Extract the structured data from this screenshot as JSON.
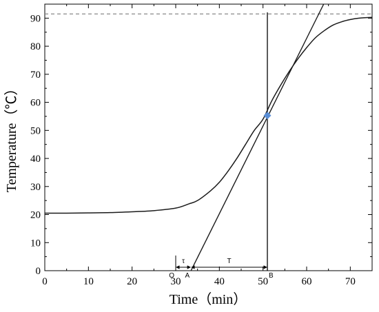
{
  "chart_data": {
    "type": "line",
    "xlabel": "Time（min）",
    "ylabel": "Temperature（℃）",
    "xlim": [
      0,
      75
    ],
    "ylim": [
      0,
      95
    ],
    "x_ticks": [
      "0",
      "10",
      "20",
      "30",
      "40",
      "50",
      "60",
      "70"
    ],
    "y_ticks": [
      "0",
      "10",
      "20",
      "30",
      "40",
      "50",
      "60",
      "70",
      "80",
      "90"
    ],
    "x_tick_values": [
      0,
      10,
      20,
      30,
      40,
      50,
      60,
      70
    ],
    "y_tick_values": [
      0,
      10,
      20,
      30,
      40,
      50,
      60,
      70,
      80,
      90
    ],
    "grid": false,
    "series": [
      {
        "kind": "curve",
        "x": [
          0,
          5,
          10,
          15,
          20,
          25,
          30,
          33,
          35,
          38,
          40,
          42,
          44,
          46,
          48,
          50,
          52,
          54,
          56,
          58,
          60,
          62,
          64,
          66,
          68,
          70,
          72,
          75
        ],
        "y": [
          20.5,
          20.5,
          20.6,
          20.7,
          21.0,
          21.4,
          22.3,
          23.8,
          25.0,
          28.5,
          31.5,
          35.5,
          40.0,
          45.0,
          50.0,
          54.0,
          60.5,
          66.0,
          71.0,
          75.5,
          79.5,
          83.0,
          85.5,
          87.5,
          88.7,
          89.5,
          90.0,
          90.3
        ]
      },
      {
        "kind": "tangent",
        "x": [
          33.5,
          63.9
        ],
        "y": [
          0,
          95
        ]
      }
    ],
    "reference_line": {
      "y": 91.5,
      "style": "dashed"
    },
    "vertical_line": {
      "x": 51
    },
    "inflection_point": {
      "x": 51,
      "y": 55.3
    },
    "annotations": {
      "O": {
        "label": "O",
        "x": 30
      },
      "A": {
        "label": "A",
        "x": 33.5
      },
      "B": {
        "label": "B",
        "x": 51
      },
      "tau": {
        "label": "τ",
        "x1": 30,
        "x2": 33.5
      },
      "T": {
        "label": "T",
        "x1": 33.5,
        "x2": 51
      }
    }
  },
  "colors": {
    "curve": "#1a1a1a",
    "marker": "#5b8fd6",
    "dashed": "#888888"
  }
}
